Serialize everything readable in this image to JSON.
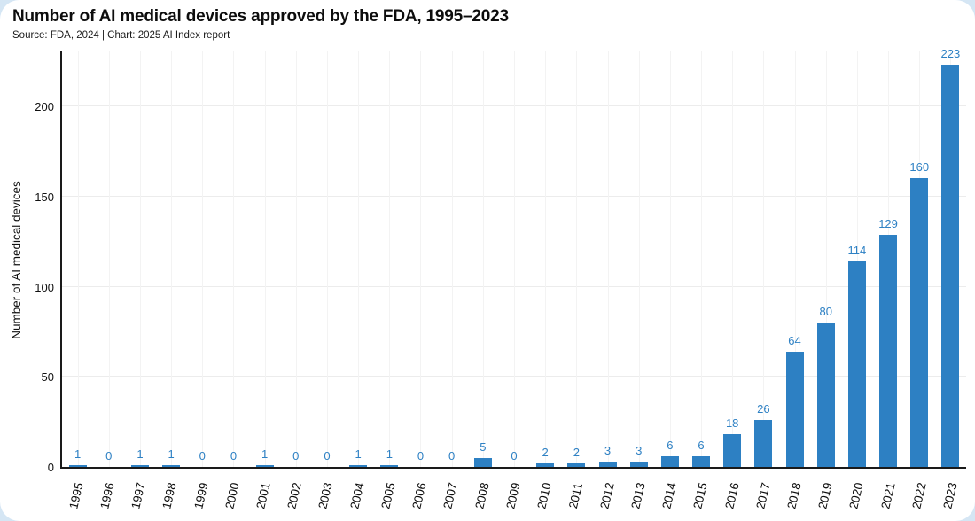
{
  "header": {
    "title": "Number of AI medical devices approved by the FDA, 1995–2023",
    "subtitle": "Source: FDA, 2024 | Chart: 2025 AI Index report"
  },
  "chart_data": {
    "type": "bar",
    "title": "Number of AI medical devices approved by the FDA, 1995–2023",
    "categories": [
      "1995",
      "1996",
      "1997",
      "1998",
      "1999",
      "2000",
      "2001",
      "2002",
      "2003",
      "2004",
      "2005",
      "2006",
      "2007",
      "2008",
      "2009",
      "2010",
      "2011",
      "2012",
      "2013",
      "2014",
      "2015",
      "2016",
      "2017",
      "2018",
      "2019",
      "2020",
      "2021",
      "2022",
      "2023"
    ],
    "values": [
      1,
      0,
      1,
      1,
      0,
      0,
      1,
      0,
      0,
      1,
      1,
      0,
      0,
      5,
      0,
      2,
      2,
      3,
      3,
      6,
      6,
      18,
      26,
      64,
      80,
      114,
      129,
      160,
      223
    ],
    "xlabel": "",
    "ylabel": "Number of AI medical devices",
    "yticks": [
      0,
      50,
      100,
      150,
      200
    ],
    "ylim": [
      0,
      232
    ],
    "grid": true,
    "legend": "none",
    "bar_color": "#2d80c3",
    "value_label_color": "#2e81c4",
    "axis_color": "#1a1a1a",
    "hgrid_color": "#ececec",
    "vgrid_color": "#f3f3f3",
    "background_color": "#d5e6f4",
    "card_color": "#ffffff"
  }
}
